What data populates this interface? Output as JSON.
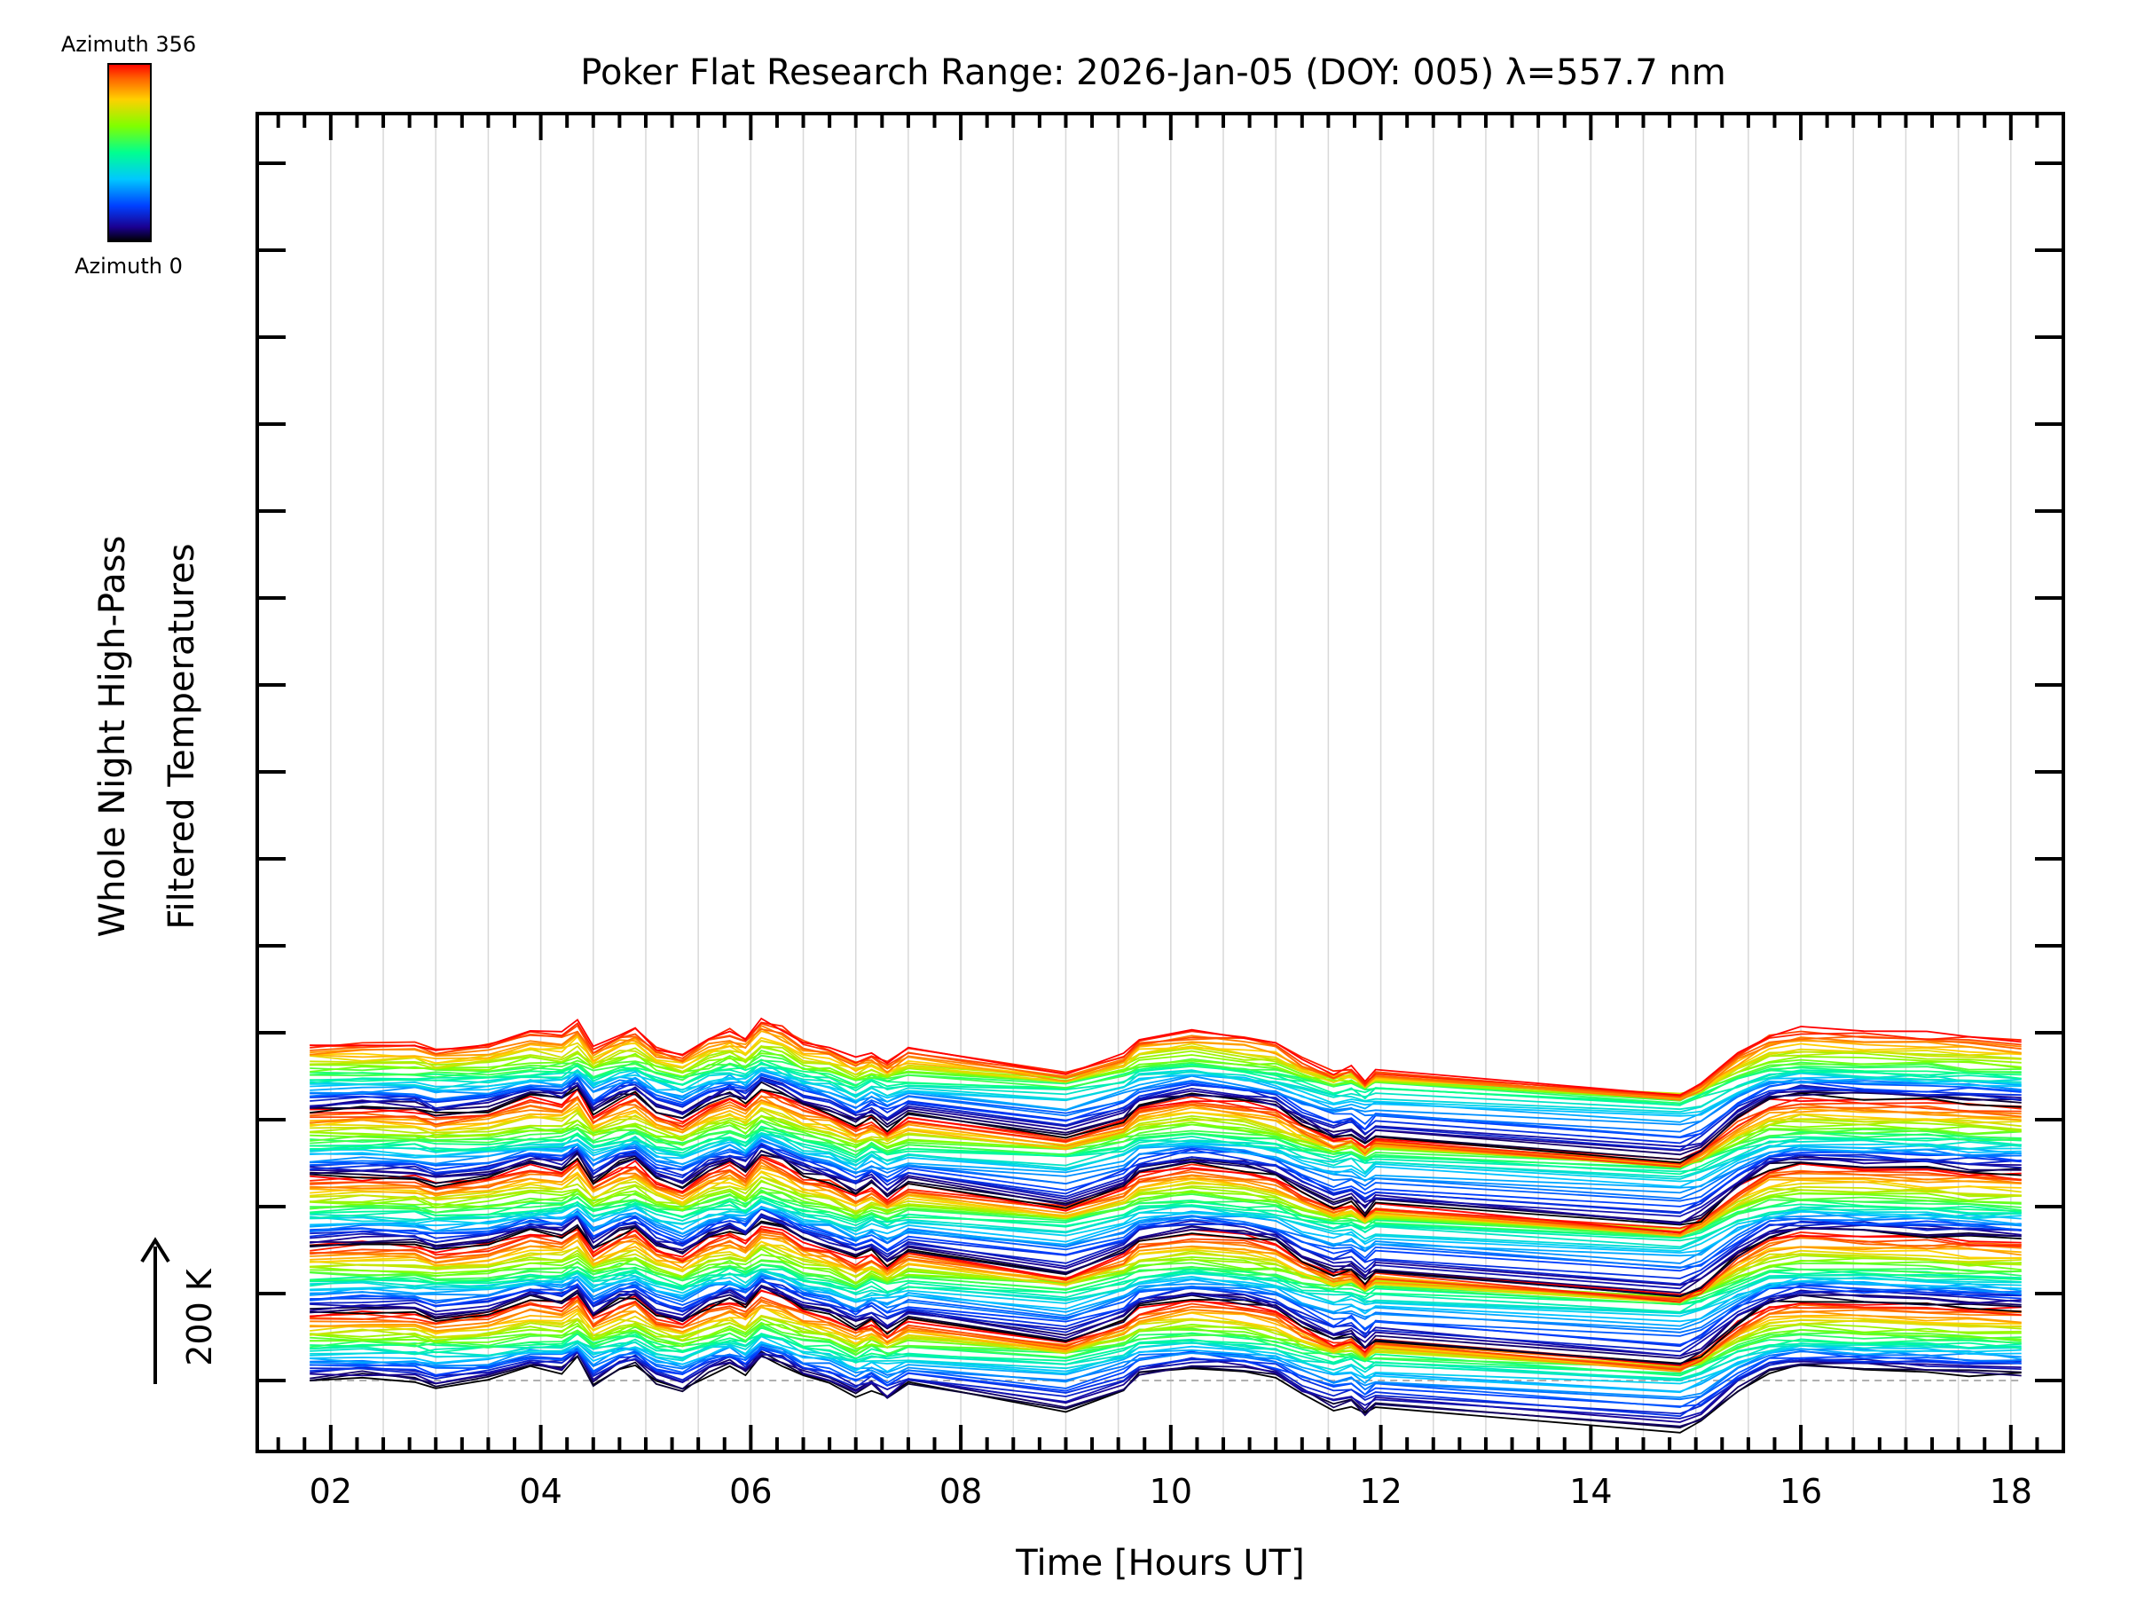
{
  "chart_data": {
    "type": "line",
    "title": "Poker Flat Research Range: 2026-Jan-05 (DOY: 005) λ=557.7 nm",
    "xlabel": "Time [Hours UT]",
    "ylabel_line1": "Whole Night High-Pass",
    "ylabel_line2": "Filtered Temperatures",
    "xlim": [
      1.3,
      18.5
    ],
    "xticks": [
      2,
      4,
      6,
      8,
      10,
      12,
      14,
      16,
      18
    ],
    "xtick_labels": [
      "02",
      "04",
      "06",
      "08",
      "10",
      "12",
      "14",
      "16",
      "18"
    ],
    "grid": true,
    "scale_bar": {
      "label": "200 K",
      "value_K": 200
    },
    "colorbar": {
      "top_label": "Azimuth 356",
      "bottom_label": "Azimuth 0",
      "min_azimuth": 0,
      "max_azimuth": 356,
      "colormap": "rainbow"
    },
    "trace_count": 180,
    "trace_offset_K": 27,
    "time_nodes": [
      1.8,
      2.3,
      2.8,
      3.0,
      3.5,
      3.9,
      4.2,
      4.35,
      4.5,
      4.75,
      4.9,
      5.1,
      5.35,
      5.6,
      5.8,
      5.95,
      6.1,
      6.3,
      6.5,
      6.75,
      7.0,
      7.15,
      7.3,
      7.5,
      9.0,
      9.55,
      9.7,
      10.2,
      10.7,
      11.0,
      11.25,
      11.55,
      11.72,
      11.85,
      11.95,
      14.85,
      15.05,
      15.4,
      15.7,
      16.0,
      16.6,
      17.2,
      17.6,
      18.1
    ],
    "pattern_a_K": [
      0,
      10,
      5,
      -25,
      5,
      60,
      40,
      90,
      -20,
      50,
      70,
      -10,
      -40,
      30,
      60,
      30,
      100,
      70,
      20,
      -10,
      -60,
      -30,
      -80,
      -20,
      -120,
      -40,
      20,
      60,
      40,
      10,
      -60,
      -120,
      -100,
      -150,
      -110,
      -210,
      -170,
      -40,
      40,
      60,
      50,
      40,
      30,
      20
    ],
    "pattern_b_K": [
      0,
      0,
      0,
      0,
      0,
      10,
      20,
      40,
      10,
      30,
      40,
      10,
      -10,
      20,
      40,
      20,
      60,
      40,
      10,
      0,
      -40,
      -10,
      -20,
      -10,
      -30,
      10,
      30,
      40,
      20,
      10,
      -10,
      -30,
      -20,
      -40,
      -30,
      -80,
      -60,
      -10,
      20,
      30,
      25,
      20,
      15,
      10
    ],
    "segment_breaks": [
      7.5,
      9.0,
      11.95,
      14.85
    ]
  }
}
